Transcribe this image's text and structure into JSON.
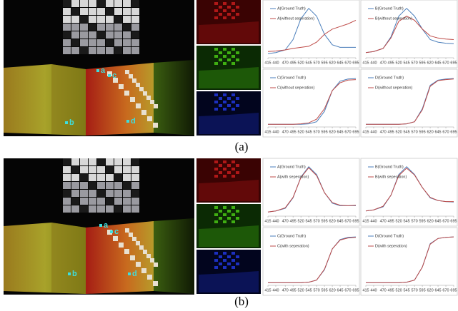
{
  "panels": [
    {
      "caption": "(a)",
      "photo_labels": [
        "a",
        "b",
        "c",
        "d"
      ],
      "charts": [
        {
          "type": "line",
          "x": [
            415,
            440,
            470,
            495,
            520,
            545,
            570,
            595,
            620,
            645,
            670,
            695
          ],
          "xticks": [
            415,
            440,
            470,
            495,
            520,
            545,
            570,
            595,
            620,
            645,
            670,
            695
          ],
          "ylim": [
            0,
            1
          ],
          "series": [
            {
              "name": "A(Ground Truth)",
              "color": "#4a7ebb",
              "values": [
                0.08,
                0.1,
                0.15,
                0.35,
                0.75,
                0.95,
                0.8,
                0.45,
                0.25,
                0.2,
                0.2,
                0.2
              ]
            },
            {
              "name": "A(without seperation)",
              "color": "#be4b48",
              "values": [
                0.12,
                0.13,
                0.15,
                0.18,
                0.2,
                0.22,
                0.3,
                0.45,
                0.55,
                0.6,
                0.65,
                0.72
              ]
            }
          ]
        },
        {
          "type": "line",
          "x": [
            415,
            440,
            470,
            495,
            520,
            545,
            570,
            595,
            620,
            645,
            670,
            695
          ],
          "xticks": [
            415,
            440,
            470,
            495,
            520,
            545,
            570,
            595,
            620,
            645,
            670,
            695
          ],
          "ylim": [
            0,
            1
          ],
          "series": [
            {
              "name": "B(Ground Truth)",
              "color": "#4a7ebb",
              "values": [
                0.1,
                0.12,
                0.18,
                0.4,
                0.8,
                0.95,
                0.8,
                0.55,
                0.35,
                0.3,
                0.28,
                0.27
              ]
            },
            {
              "name": "B(without seperation)",
              "color": "#be4b48",
              "values": [
                0.1,
                0.12,
                0.18,
                0.38,
                0.7,
                0.8,
                0.72,
                0.55,
                0.42,
                0.38,
                0.36,
                0.35
              ]
            }
          ]
        },
        {
          "type": "line",
          "x": [
            415,
            440,
            470,
            495,
            520,
            545,
            570,
            595,
            620,
            645,
            670,
            695
          ],
          "xticks": [
            415,
            440,
            470,
            495,
            520,
            545,
            570,
            595,
            620,
            645,
            670,
            695
          ],
          "ylim": [
            0,
            1
          ],
          "series": [
            {
              "name": "C(Ground Truth)",
              "color": "#4a7ebb",
              "values": [
                0.05,
                0.05,
                0.05,
                0.05,
                0.05,
                0.06,
                0.1,
                0.3,
                0.7,
                0.88,
                0.92,
                0.93
              ]
            },
            {
              "name": "C(without seperation)",
              "color": "#be4b48",
              "values": [
                0.05,
                0.05,
                0.05,
                0.05,
                0.06,
                0.08,
                0.15,
                0.35,
                0.7,
                0.85,
                0.9,
                0.91
              ]
            }
          ]
        },
        {
          "type": "line",
          "x": [
            415,
            440,
            470,
            495,
            520,
            545,
            570,
            595,
            620,
            645,
            670,
            695
          ],
          "xticks": [
            415,
            440,
            470,
            495,
            520,
            545,
            570,
            595,
            620,
            645,
            670,
            695
          ],
          "ylim": [
            0,
            1
          ],
          "series": [
            {
              "name": "D(Ground Truth)",
              "color": "#4a7ebb",
              "values": [
                0.05,
                0.05,
                0.05,
                0.05,
                0.05,
                0.06,
                0.1,
                0.35,
                0.8,
                0.9,
                0.92,
                0.93
              ]
            },
            {
              "name": "D(without seperation)",
              "color": "#be4b48",
              "values": [
                0.05,
                0.05,
                0.05,
                0.05,
                0.05,
                0.06,
                0.1,
                0.33,
                0.78,
                0.89,
                0.91,
                0.92
              ]
            }
          ]
        }
      ]
    },
    {
      "caption": "(b)",
      "photo_labels": [
        "a",
        "b",
        "c",
        "d"
      ],
      "charts": [
        {
          "type": "line",
          "x": [
            415,
            440,
            470,
            495,
            520,
            545,
            570,
            595,
            620,
            645,
            670,
            695
          ],
          "xticks": [
            415,
            440,
            470,
            495,
            520,
            545,
            570,
            595,
            620,
            645,
            670,
            695
          ],
          "ylim": [
            0,
            1
          ],
          "series": [
            {
              "name": "A(Ground Truth)",
              "color": "#4a7ebb",
              "values": [
                0.08,
                0.1,
                0.15,
                0.35,
                0.75,
                0.95,
                0.8,
                0.45,
                0.25,
                0.2,
                0.2,
                0.2
              ]
            },
            {
              "name": "A(with seperation)",
              "color": "#be4b48",
              "values": [
                0.08,
                0.1,
                0.16,
                0.36,
                0.74,
                0.93,
                0.78,
                0.45,
                0.26,
                0.21,
                0.2,
                0.21
              ]
            }
          ]
        },
        {
          "type": "line",
          "x": [
            415,
            440,
            470,
            495,
            520,
            545,
            570,
            595,
            620,
            645,
            670,
            695
          ],
          "xticks": [
            415,
            440,
            470,
            495,
            520,
            545,
            570,
            595,
            620,
            645,
            670,
            695
          ],
          "ylim": [
            0,
            1
          ],
          "series": [
            {
              "name": "B(Ground Truth)",
              "color": "#4a7ebb",
              "values": [
                0.1,
                0.12,
                0.18,
                0.4,
                0.8,
                0.95,
                0.8,
                0.55,
                0.35,
                0.3,
                0.28,
                0.27
              ]
            },
            {
              "name": "B(with seperation)",
              "color": "#be4b48",
              "values": [
                0.1,
                0.12,
                0.19,
                0.4,
                0.78,
                0.92,
                0.79,
                0.55,
                0.36,
                0.3,
                0.28,
                0.28
              ]
            }
          ]
        },
        {
          "type": "line",
          "x": [
            415,
            440,
            470,
            495,
            520,
            545,
            570,
            595,
            620,
            645,
            670,
            695
          ],
          "xticks": [
            415,
            440,
            470,
            495,
            520,
            545,
            570,
            595,
            620,
            645,
            670,
            695
          ],
          "ylim": [
            0,
            1
          ],
          "series": [
            {
              "name": "C(Ground Truth)",
              "color": "#4a7ebb",
              "values": [
                0.05,
                0.05,
                0.05,
                0.05,
                0.05,
                0.06,
                0.1,
                0.3,
                0.7,
                0.88,
                0.92,
                0.93
              ]
            },
            {
              "name": "C(with seperation)",
              "color": "#be4b48",
              "values": [
                0.05,
                0.05,
                0.05,
                0.05,
                0.05,
                0.06,
                0.1,
                0.31,
                0.7,
                0.87,
                0.91,
                0.92
              ]
            }
          ]
        },
        {
          "type": "line",
          "x": [
            415,
            440,
            470,
            495,
            520,
            545,
            570,
            595,
            620,
            645,
            670,
            695
          ],
          "xticks": [
            415,
            440,
            470,
            495,
            520,
            545,
            570,
            595,
            620,
            645,
            670,
            695
          ],
          "ylim": [
            0,
            1
          ],
          "series": [
            {
              "name": "D(Ground Truth)",
              "color": "#4a7ebb",
              "values": [
                0.05,
                0.05,
                0.05,
                0.05,
                0.05,
                0.06,
                0.1,
                0.35,
                0.8,
                0.9,
                0.92,
                0.93
              ]
            },
            {
              "name": "D(with seperation)",
              "color": "#be4b48",
              "values": [
                0.05,
                0.05,
                0.05,
                0.05,
                0.05,
                0.06,
                0.1,
                0.35,
                0.79,
                0.9,
                0.92,
                0.93
              ]
            }
          ]
        }
      ]
    }
  ]
}
